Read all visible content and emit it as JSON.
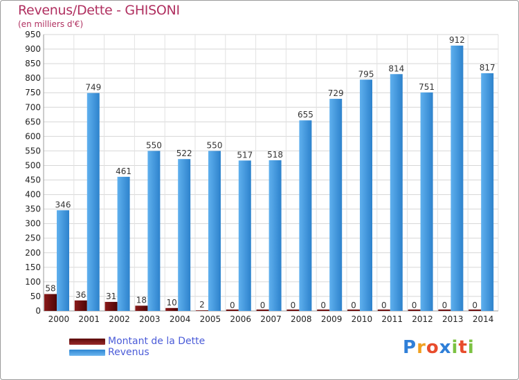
{
  "header": {
    "title": "Revenus/Dette - GHISONI",
    "subtitle": "(en milliers d'€)"
  },
  "chart_data": {
    "type": "bar",
    "title": "Revenus/Dette - GHISONI",
    "subtitle": "(en milliers d'€)",
    "xlabel": "",
    "ylabel": "",
    "ylim": [
      0,
      950
    ],
    "ytick_step": 50,
    "grid": true,
    "legend_position": "bottom-left",
    "categories": [
      "2000",
      "2001",
      "2002",
      "2003",
      "2004",
      "2005",
      "2006",
      "2007",
      "2008",
      "2009",
      "2010",
      "2011",
      "2012",
      "2013",
      "2014"
    ],
    "series": [
      {
        "name": "Montant de la Dette",
        "color": "#7a1212",
        "values": [
          58,
          36,
          31,
          18,
          10,
          2,
          0,
          0,
          0,
          0,
          0,
          0,
          0,
          0,
          0
        ]
      },
      {
        "name": "Revenus",
        "color": "#4a9fe3",
        "values": [
          346,
          749,
          461,
          550,
          522,
          550,
          517,
          518,
          655,
          729,
          795,
          814,
          751,
          912,
          817
        ]
      }
    ]
  },
  "logo": {
    "letters": [
      "P",
      "r",
      "o",
      "x",
      "i",
      "t",
      "i"
    ],
    "colors": [
      "#2f7fd8",
      "#f0a020",
      "#e84c2c",
      "#2f7fd8",
      "#7cc242",
      "#e84c2c",
      "#7cc242"
    ]
  }
}
